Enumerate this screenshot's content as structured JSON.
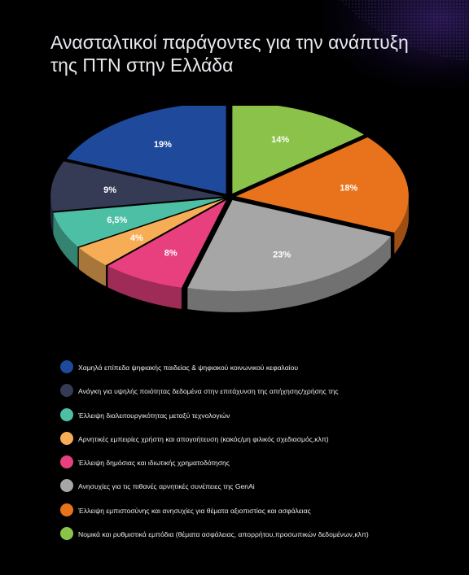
{
  "title_lines": [
    "Ανασταλτικοί παράγοντες για την ανάπτυξη",
    "της ΠΤΝ στην Ελλάδα"
  ],
  "chart_data": {
    "type": "pie",
    "title": "Ανασταλτικοί παράγοντες για την ανάπτυξη της ΠΤΝ στην Ελλάδα",
    "legend_position": "bottom",
    "slices": [
      {
        "label": "Νομικά και ρυθμιστικά εμπόδια (θέματα ασφάλειας, απορρήτου,προσωπικών δεδομένων,κλπ)",
        "value": 14,
        "value_label": "14%",
        "color": "#8bc34a"
      },
      {
        "label": "Έλλειψη εμπιστοσύνης και ανησυχίες για θέματα αξιοπιστίας και ασφάλειας",
        "value": 18,
        "value_label": "18%",
        "color": "#e8731c"
      },
      {
        "label": "Ανησυχίες για τις πιθανές αρνητικές συνέπειες της GenAi",
        "value": 23,
        "value_label": "23%",
        "color": "#a7a6a6"
      },
      {
        "label": "Έλλειψη δημόσιας και ιδιωτικής χρηματοδότησης",
        "value": 8,
        "value_label": "8%",
        "color": "#e8407f"
      },
      {
        "label": "Αρνητικές εμπειρίες χρήστη και απογοήτευση (κακός/μη φιλικός σχεδιασμός,κλπ)",
        "value": 4,
        "value_label": "4%",
        "color": "#f6ad55"
      },
      {
        "label": "Έλλειψη διαλειτουργικότητας μεταξύ τεχνολογιών",
        "value": 6.5,
        "value_label": "6,5%",
        "color": "#4dbfa4"
      },
      {
        "label": "Ανάγκη για υψηλής ποιότητας δεδομένα στην επιτάχυνση της απήχησης/χρήσης της",
        "value": 9,
        "value_label": "9%",
        "color": "#353a55"
      },
      {
        "label": "Χαμηλά επίπεδα ψηφιακής παιδείας & ψηφιακού κοινωνικού κεφαλαίου",
        "value": 19,
        "value_label": "19%",
        "color": "#1f4a9c"
      }
    ],
    "legend_order": [
      "Χαμηλά επίπεδα ψηφιακής παιδείας & ψηφιακού κοινωνικού κεφαλαίου",
      "Ανάγκη για υψηλής ποιότητας δεδομένα στην επιτάχυνση της απήχησης/χρήσης της",
      "Έλλειψη διαλειτουργικότητας μεταξύ τεχνολογιών",
      "Αρνητικές εμπειρίες χρήστη και απογοήτευση (κακός/μη φιλικός σχεδιασμός,κλπ)",
      "Έλλειψη δημόσιας και ιδιωτικής χρηματοδότησης",
      "Ανησυχίες για τις πιθανές αρνητικές συνέπειες της GenAi",
      "Έλλειψη εμπιστοσύνης και ανησυχίες για θέματα αξιοπιστίας και ασφάλειας",
      "Νομικά και ρυθμιστικά εμπόδια (θέματα ασφάλειας, απορρήτου,προσωπικών δεδομένων,κλπ)"
    ]
  }
}
